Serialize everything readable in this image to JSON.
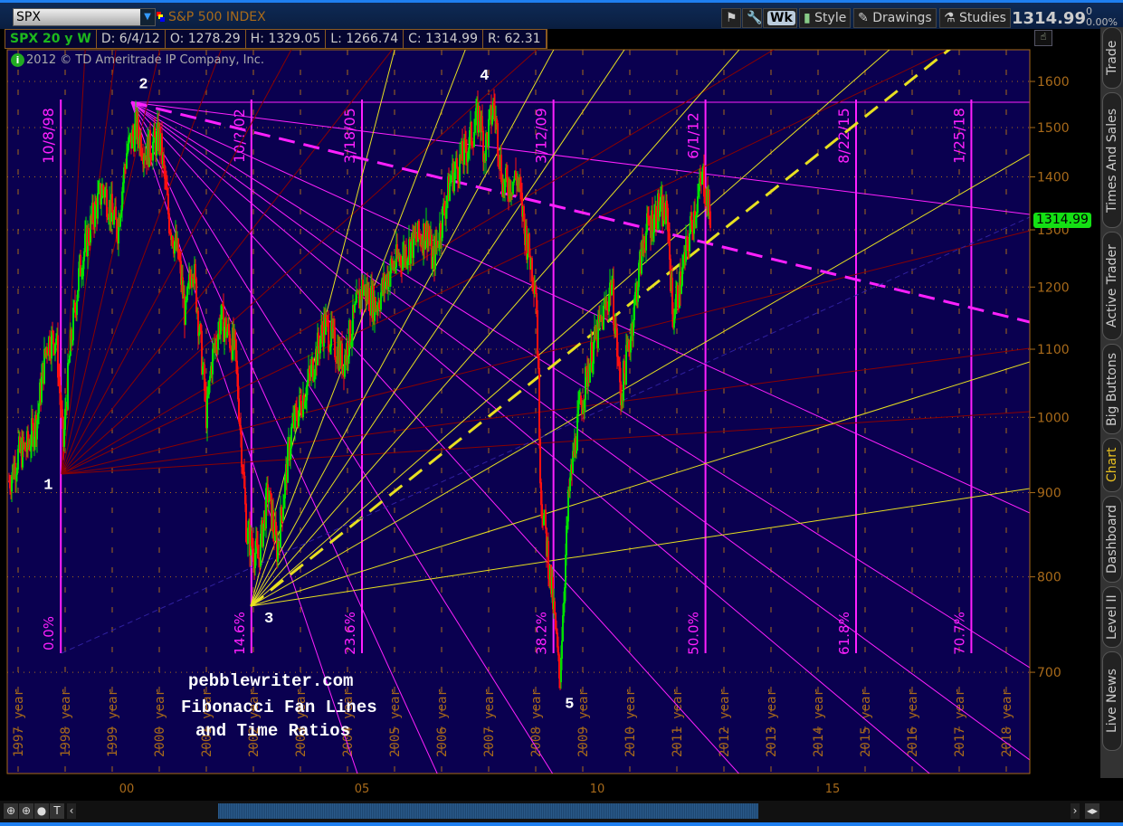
{
  "header": {
    "symbol": "SPX",
    "description": "S&P 500 INDEX",
    "buttons": {
      "wk": "Wk",
      "style": "Style",
      "drawings": "Drawings",
      "studies": "Studies"
    },
    "last": "1314.99",
    "change": "0",
    "change_pct": "0.00%"
  },
  "infobar": {
    "title": "SPX 20 y W",
    "date": "D: 6/4/12",
    "open": "O: 1278.29",
    "high": "H: 1329.05",
    "low": "L: 1266.74",
    "close": "C: 1314.99",
    "range": "R: 62.31"
  },
  "copyright": "2012 © TD Ameritrade IP Company, Inc.",
  "side_tabs": [
    "Trade",
    "Times And Sales",
    "Active Trader",
    "Big Buttons",
    "Chart",
    "Dashboard",
    "Level II",
    "Live News"
  ],
  "active_tab": "Chart",
  "price_tag": "1314.99",
  "annotations": {
    "site": "pebblewriter.com",
    "line1": "Fibonacci Fan Lines",
    "line2": "and Time Ratios",
    "points": [
      {
        "label": "1",
        "year": 1998.6,
        "price": 923
      },
      {
        "label": "2",
        "year": 2000.2,
        "price": 1553
      },
      {
        "label": "3",
        "year": 2002.75,
        "price": 768
      },
      {
        "label": "4",
        "year": 2007.6,
        "price": 1576
      },
      {
        "label": "5",
        "year": 2009.1,
        "price": 666
      }
    ],
    "time_lines": [
      {
        "date": "10/8/98",
        "pct": "0.0%",
        "year": 1998.6
      },
      {
        "date": "10/?/02",
        "pct": "14.6%",
        "year": 2002.65
      },
      {
        "date": "3/18/05",
        "pct": "23.6%",
        "year": 2005.0
      },
      {
        "date": "3/12/09",
        "pct": "38.2%",
        "year": 2009.07
      },
      {
        "date": "6/1/12",
        "pct": "50.0%",
        "year": 2012.3
      },
      {
        "date": "8/22/15",
        "pct": "61.8%",
        "year": 2015.5
      },
      {
        "date": "1/25/18",
        "pct": "70.7%",
        "year": 2017.95
      }
    ]
  },
  "colors": {
    "background": "#0a0050",
    "up": "#00e000",
    "down": "#ff1010",
    "fan_top": "#ff20ff",
    "fan_low": "#8b0000",
    "fan_3": "#e8e020",
    "axis": "#a86a1a",
    "time_lines": "#ff20ff"
  },
  "chart_data": {
    "type": "line",
    "yscale": "log",
    "ylim": [
      608,
      1672
    ],
    "xlim": [
      1997.46,
      2019.19
    ],
    "yticks": [
      700,
      800,
      900,
      1000,
      1100,
      1200,
      1300,
      1400,
      1500,
      1600
    ],
    "xticks": [
      "00",
      "05",
      "10",
      "15"
    ],
    "year_labels": [
      "1997 year",
      "1998 year",
      "1999 year",
      "2000 year",
      "2001 year",
      "2002 year",
      "2003 year",
      "2004 year",
      "2005 year",
      "2006 year",
      "2007 year",
      "2008 year",
      "2009 year",
      "2010 year",
      "2011 year",
      "2012 year",
      "2013 year",
      "2014 year",
      "2015 year",
      "2016 year",
      "2017 year",
      "2018 year"
    ],
    "grid": true,
    "x": [
      1997.5,
      1997.7,
      1997.9,
      1998.1,
      1998.3,
      1998.5,
      1998.65,
      1998.8,
      1999.0,
      1999.3,
      1999.5,
      1999.8,
      2000.0,
      2000.2,
      2000.4,
      2000.7,
      2000.9,
      2001.1,
      2001.25,
      2001.4,
      2001.7,
      2001.8,
      2002.0,
      2002.3,
      2002.55,
      2002.8,
      2003.0,
      2003.2,
      2003.5,
      2003.9,
      2004.2,
      2004.6,
      2005.0,
      2005.3,
      2005.6,
      2006.0,
      2006.4,
      2006.5,
      2006.9,
      2007.2,
      2007.5,
      2007.6,
      2007.8,
      2008.0,
      2008.3,
      2008.5,
      2008.7,
      2008.8,
      2008.9,
      2009.1,
      2009.2,
      2009.4,
      2009.6,
      2009.9,
      2010.2,
      2010.3,
      2010.5,
      2010.7,
      2011.0,
      2011.3,
      2011.5,
      2011.6,
      2011.8,
      2012.0,
      2012.25,
      2012.42
    ],
    "values": [
      915,
      950,
      960,
      1000,
      1110,
      1120,
      960,
      1100,
      1230,
      1330,
      1380,
      1300,
      1450,
      1500,
      1450,
      1480,
      1320,
      1250,
      1150,
      1250,
      1000,
      1080,
      1150,
      1100,
      850,
      820,
      900,
      830,
      980,
      1060,
      1140,
      1080,
      1200,
      1170,
      1230,
      1270,
      1300,
      1240,
      1400,
      1450,
      1530,
      1450,
      1550,
      1380,
      1400,
      1280,
      1200,
      900,
      850,
      750,
      690,
      900,
      1000,
      1100,
      1170,
      1210,
      1030,
      1120,
      1290,
      1340,
      1320,
      1150,
      1220,
      1310,
      1400,
      1315
    ]
  }
}
